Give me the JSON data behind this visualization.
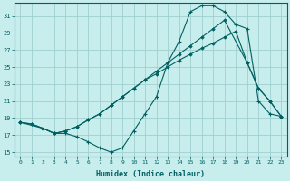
{
  "title": "",
  "xlabel": "Humidex (Indice chaleur)",
  "ylabel": "",
  "bg_color": "#c8eded",
  "grid_color": "#a0d0d0",
  "line_color": "#006060",
  "xlim": [
    -0.5,
    23.5
  ],
  "ylim": [
    14.5,
    32.5
  ],
  "xticks": [
    0,
    1,
    2,
    3,
    4,
    5,
    6,
    7,
    8,
    9,
    10,
    11,
    12,
    13,
    14,
    15,
    16,
    17,
    18,
    19,
    20,
    21,
    22,
    23
  ],
  "yticks": [
    15,
    17,
    19,
    21,
    23,
    25,
    27,
    29,
    31
  ],
  "line1_x": [
    0,
    1,
    2,
    3,
    4,
    5,
    6,
    7,
    8,
    9,
    10,
    11,
    12,
    13,
    14,
    15,
    16,
    17,
    18,
    19,
    20,
    21,
    22,
    23
  ],
  "line1_y": [
    18.5,
    18.3,
    17.8,
    17.2,
    17.2,
    16.8,
    16.2,
    15.5,
    15.0,
    15.5,
    17.5,
    19.5,
    21.5,
    25.5,
    28.0,
    31.5,
    32.2,
    32.2,
    31.5,
    30.0,
    29.5,
    21.0,
    19.5,
    19.2
  ],
  "line2_x": [
    0,
    1,
    2,
    3,
    4,
    5,
    6,
    7,
    8,
    9,
    10,
    11,
    12,
    13,
    14,
    15,
    16,
    17,
    18,
    20,
    21,
    22,
    23
  ],
  "line2_y": [
    18.5,
    18.3,
    17.8,
    17.2,
    17.5,
    18.0,
    18.8,
    19.5,
    20.5,
    21.5,
    22.5,
    23.5,
    24.5,
    25.5,
    26.5,
    27.5,
    28.5,
    29.5,
    30.5,
    25.5,
    22.5,
    21.0,
    19.2
  ],
  "line3_x": [
    0,
    2,
    3,
    4,
    5,
    6,
    7,
    8,
    9,
    10,
    11,
    12,
    13,
    14,
    15,
    16,
    17,
    18,
    19,
    20,
    21,
    22,
    23
  ],
  "line3_y": [
    18.5,
    17.8,
    17.2,
    17.5,
    18.0,
    18.8,
    19.5,
    20.5,
    21.5,
    22.5,
    23.5,
    24.2,
    25.0,
    25.8,
    26.5,
    27.2,
    27.8,
    28.5,
    29.2,
    25.5,
    22.5,
    21.0,
    19.2
  ],
  "xlabel_fontsize": 6,
  "tick_fontsize": 5
}
